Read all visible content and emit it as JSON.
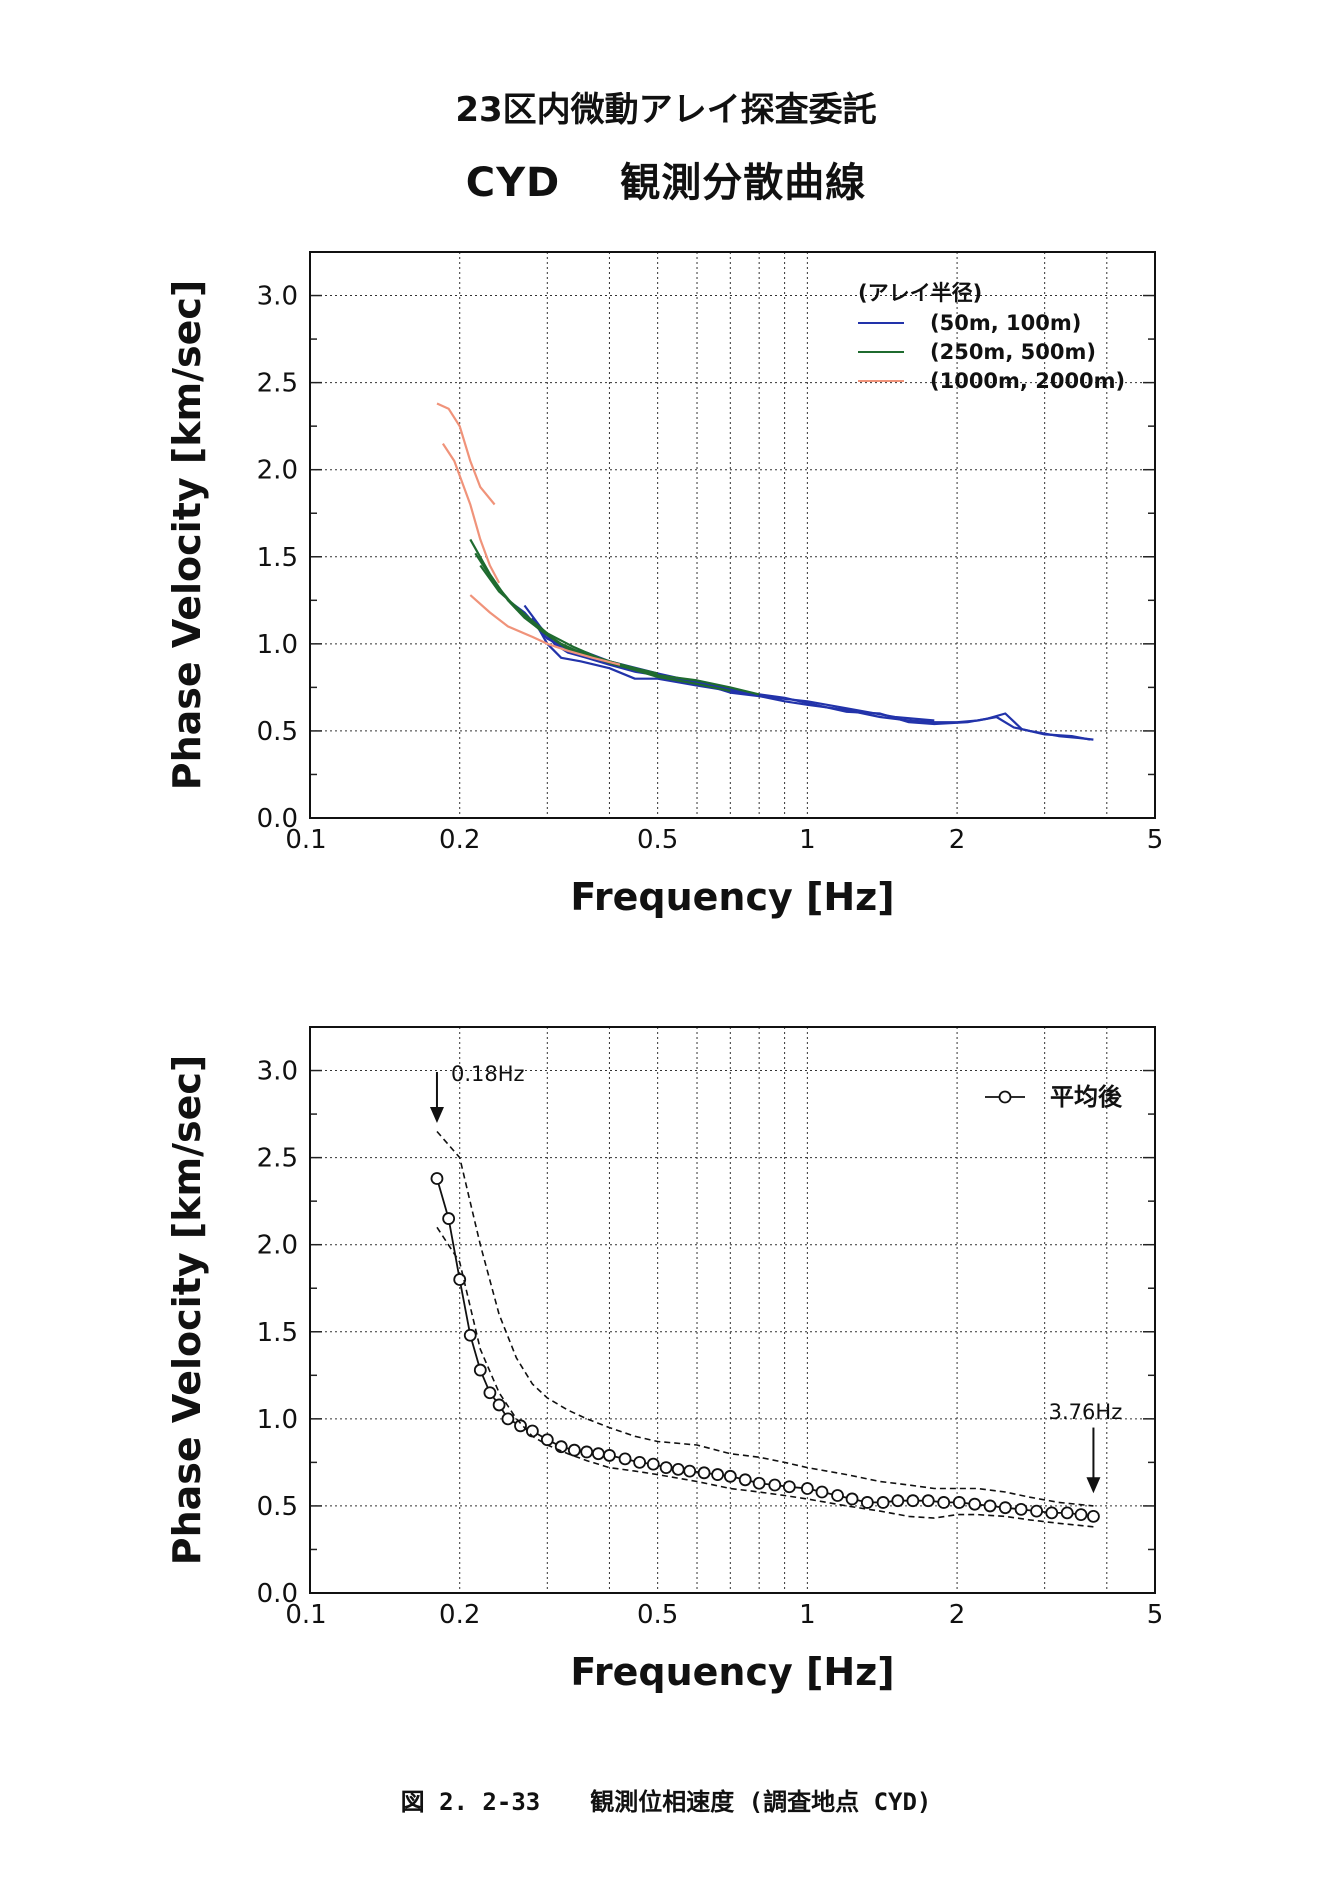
{
  "page": {
    "title_line1": "23区内微動アレイ探査委託",
    "title_code": "CYD",
    "title_line2": "観測分散曲線",
    "caption_fig": "図 2. 2-33",
    "caption_text": "観測位相速度 (調査地点 CYD)"
  },
  "chart_data": [
    {
      "type": "line",
      "xlabel": "Frequency [Hz]",
      "ylabel": "Phase Velocity [km/sec]",
      "xscale": "log",
      "xlim": [
        0.1,
        5
      ],
      "ylim": [
        0.0,
        3.25
      ],
      "xticks": [
        {
          "v": 0.1,
          "label": "0.1"
        },
        {
          "v": 0.2,
          "label": "0.2"
        },
        {
          "v": 0.5,
          "label": "0.5"
        },
        {
          "v": 1,
          "label": "1"
        },
        {
          "v": 2,
          "label": "2"
        },
        {
          "v": 5,
          "label": "5"
        }
      ],
      "yticks": [
        {
          "v": 0.0,
          "label": "0.0"
        },
        {
          "v": 0.5,
          "label": "0.5"
        },
        {
          "v": 1.0,
          "label": "1.0"
        },
        {
          "v": 1.5,
          "label": "1.5"
        },
        {
          "v": 2.0,
          "label": "2.0"
        },
        {
          "v": 2.5,
          "label": "2.5"
        },
        {
          "v": 3.0,
          "label": "3.0"
        }
      ],
      "grid": true,
      "legend_title": "(アレイ半径)",
      "legend_position": "top-right",
      "series": [
        {
          "name": "(50m, 100m)",
          "color": "#2233aa",
          "lines": [
            [
              [
                0.27,
                1.22
              ],
              [
                0.29,
                1.1
              ],
              [
                0.31,
                1.0
              ],
              [
                0.33,
                0.95
              ],
              [
                0.36,
                0.92
              ],
              [
                0.4,
                0.88
              ],
              [
                0.45,
                0.84
              ],
              [
                0.5,
                0.82
              ],
              [
                0.6,
                0.78
              ],
              [
                0.7,
                0.72
              ],
              [
                0.8,
                0.7
              ],
              [
                0.9,
                0.67
              ],
              [
                1.0,
                0.65
              ],
              [
                1.2,
                0.62
              ],
              [
                1.4,
                0.58
              ],
              [
                1.6,
                0.56
              ],
              [
                1.8,
                0.55
              ],
              [
                2.0,
                0.55
              ],
              [
                2.2,
                0.56
              ],
              [
                2.4,
                0.58
              ],
              [
                2.6,
                0.52
              ],
              [
                2.8,
                0.5
              ],
              [
                3.2,
                0.47
              ],
              [
                3.5,
                0.46
              ],
              [
                3.76,
                0.45
              ]
            ],
            [
              [
                0.28,
                1.15
              ],
              [
                0.3,
                1.0
              ],
              [
                0.32,
                0.92
              ],
              [
                0.35,
                0.9
              ],
              [
                0.4,
                0.86
              ],
              [
                0.45,
                0.8
              ],
              [
                0.5,
                0.8
              ],
              [
                0.6,
                0.76
              ],
              [
                0.7,
                0.73
              ],
              [
                0.8,
                0.71
              ],
              [
                0.9,
                0.69
              ],
              [
                1.0,
                0.66
              ],
              [
                1.2,
                0.61
              ],
              [
                1.4,
                0.6
              ],
              [
                1.6,
                0.55
              ],
              [
                1.8,
                0.54
              ],
              [
                2.1,
                0.55
              ],
              [
                2.3,
                0.57
              ],
              [
                2.5,
                0.6
              ],
              [
                2.7,
                0.51
              ],
              [
                3.0,
                0.48
              ],
              [
                3.4,
                0.47
              ],
              [
                3.7,
                0.45
              ]
            ],
            [
              [
                0.25,
                1.25
              ],
              [
                0.27,
                1.18
              ],
              [
                0.3,
                1.03
              ],
              [
                0.33,
                0.97
              ],
              [
                0.36,
                0.95
              ],
              [
                0.4,
                0.9
              ],
              [
                0.5,
                0.83
              ],
              [
                0.6,
                0.78
              ],
              [
                0.7,
                0.74
              ],
              [
                0.8,
                0.7
              ],
              [
                1.0,
                0.67
              ],
              [
                1.2,
                0.63
              ],
              [
                1.5,
                0.58
              ],
              [
                1.8,
                0.56
              ]
            ]
          ]
        },
        {
          "name": "(250m, 500m)",
          "color": "#1f6b2f",
          "lines": [
            [
              [
                0.21,
                1.6
              ],
              [
                0.23,
                1.4
              ],
              [
                0.25,
                1.25
              ],
              [
                0.27,
                1.15
              ],
              [
                0.3,
                1.05
              ],
              [
                0.33,
                0.97
              ],
              [
                0.36,
                0.94
              ],
              [
                0.4,
                0.9
              ],
              [
                0.45,
                0.86
              ],
              [
                0.5,
                0.82
              ],
              [
                0.6,
                0.79
              ],
              [
                0.7,
                0.75
              ],
              [
                0.8,
                0.71
              ]
            ],
            [
              [
                0.215,
                1.52
              ],
              [
                0.235,
                1.35
              ],
              [
                0.26,
                1.2
              ],
              [
                0.29,
                1.08
              ],
              [
                0.32,
                1.0
              ],
              [
                0.35,
                0.95
              ],
              [
                0.4,
                0.89
              ],
              [
                0.45,
                0.85
              ],
              [
                0.5,
                0.81
              ],
              [
                0.6,
                0.77
              ],
              [
                0.7,
                0.73
              ]
            ],
            [
              [
                0.22,
                1.45
              ],
              [
                0.24,
                1.3
              ],
              [
                0.27,
                1.17
              ],
              [
                0.3,
                1.06
              ],
              [
                0.34,
                0.98
              ],
              [
                0.38,
                0.92
              ],
              [
                0.42,
                0.88
              ],
              [
                0.5,
                0.83
              ]
            ]
          ]
        },
        {
          "name": "(1000m, 2000m)",
          "color": "#f0937a",
          "lines": [
            [
              [
                0.18,
                2.38
              ],
              [
                0.19,
                2.35
              ],
              [
                0.2,
                2.25
              ],
              [
                0.21,
                2.05
              ],
              [
                0.22,
                1.9
              ],
              [
                0.235,
                1.8
              ]
            ],
            [
              [
                0.185,
                2.15
              ],
              [
                0.195,
                2.05
              ],
              [
                0.21,
                1.8
              ],
              [
                0.22,
                1.6
              ],
              [
                0.23,
                1.45
              ],
              [
                0.24,
                1.35
              ]
            ],
            [
              [
                0.21,
                1.28
              ],
              [
                0.23,
                1.18
              ],
              [
                0.25,
                1.1
              ],
              [
                0.28,
                1.04
              ],
              [
                0.3,
                1.0
              ],
              [
                0.33,
                0.96
              ],
              [
                0.37,
                0.92
              ],
              [
                0.42,
                0.88
              ]
            ]
          ]
        }
      ]
    },
    {
      "type": "line",
      "xlabel": "Frequency [Hz]",
      "ylabel": "Phase Velocity [km/sec]",
      "xscale": "log",
      "xlim": [
        0.1,
        5
      ],
      "ylim": [
        0.0,
        3.25
      ],
      "xticks": [
        {
          "v": 0.1,
          "label": "0.1"
        },
        {
          "v": 0.2,
          "label": "0.2"
        },
        {
          "v": 0.5,
          "label": "0.5"
        },
        {
          "v": 1,
          "label": "1"
        },
        {
          "v": 2,
          "label": "2"
        },
        {
          "v": 5,
          "label": "5"
        }
      ],
      "yticks": [
        {
          "v": 0.0,
          "label": "0.0"
        },
        {
          "v": 0.5,
          "label": "0.5"
        },
        {
          "v": 1.0,
          "label": "1.0"
        },
        {
          "v": 1.5,
          "label": "1.5"
        },
        {
          "v": 2.0,
          "label": "2.0"
        },
        {
          "v": 2.5,
          "label": "2.5"
        },
        {
          "v": 3.0,
          "label": "3.0"
        }
      ],
      "grid": true,
      "legend_position": "top-right",
      "annotations": [
        {
          "label": "0.18Hz",
          "x": 0.18
        },
        {
          "label": "3.76Hz",
          "x": 3.76
        }
      ],
      "series": [
        {
          "name": "平均後",
          "marker": "open-circle",
          "color": "#111111",
          "x": [
            0.18,
            0.19,
            0.2,
            0.21,
            0.22,
            0.23,
            0.24,
            0.25,
            0.265,
            0.28,
            0.3,
            0.32,
            0.34,
            0.36,
            0.38,
            0.4,
            0.43,
            0.46,
            0.49,
            0.52,
            0.55,
            0.58,
            0.62,
            0.66,
            0.7,
            0.75,
            0.8,
            0.86,
            0.92,
            1.0,
            1.07,
            1.15,
            1.23,
            1.32,
            1.42,
            1.52,
            1.63,
            1.75,
            1.88,
            2.02,
            2.17,
            2.33,
            2.5,
            2.69,
            2.89,
            3.1,
            3.33,
            3.55,
            3.76
          ],
          "y": [
            2.38,
            2.15,
            1.8,
            1.48,
            1.28,
            1.15,
            1.08,
            1.0,
            0.96,
            0.93,
            0.88,
            0.84,
            0.82,
            0.81,
            0.8,
            0.79,
            0.77,
            0.75,
            0.74,
            0.72,
            0.71,
            0.7,
            0.69,
            0.68,
            0.67,
            0.65,
            0.63,
            0.62,
            0.61,
            0.6,
            0.58,
            0.56,
            0.54,
            0.52,
            0.52,
            0.53,
            0.53,
            0.53,
            0.52,
            0.52,
            0.51,
            0.5,
            0.49,
            0.48,
            0.47,
            0.46,
            0.46,
            0.45,
            0.44
          ]
        },
        {
          "style": "dashed",
          "color": "#111111",
          "x": [
            0.18,
            0.2,
            0.22,
            0.24,
            0.26,
            0.28,
            0.3,
            0.33,
            0.36,
            0.4,
            0.45,
            0.5,
            0.6,
            0.7,
            0.8,
            0.9,
            1.0,
            1.2,
            1.4,
            1.6,
            1.8,
            2.0,
            2.2,
            2.5,
            2.8,
            3.2,
            3.76
          ],
          "y": [
            2.65,
            2.5,
            2.0,
            1.6,
            1.35,
            1.2,
            1.12,
            1.05,
            1.0,
            0.95,
            0.9,
            0.87,
            0.85,
            0.8,
            0.78,
            0.75,
            0.72,
            0.68,
            0.64,
            0.62,
            0.6,
            0.6,
            0.6,
            0.58,
            0.55,
            0.52,
            0.5
          ]
        },
        {
          "style": "dashed",
          "color": "#111111",
          "x": [
            0.18,
            0.2,
            0.22,
            0.24,
            0.26,
            0.28,
            0.3,
            0.33,
            0.36,
            0.4,
            0.45,
            0.5,
            0.6,
            0.7,
            0.8,
            0.9,
            1.0,
            1.2,
            1.4,
            1.6,
            1.8,
            2.0,
            2.2,
            2.5,
            2.8,
            3.2,
            3.76
          ],
          "y": [
            2.1,
            1.9,
            1.4,
            1.15,
            1.0,
            0.9,
            0.85,
            0.8,
            0.76,
            0.72,
            0.7,
            0.68,
            0.64,
            0.6,
            0.58,
            0.56,
            0.54,
            0.5,
            0.47,
            0.44,
            0.43,
            0.45,
            0.45,
            0.44,
            0.42,
            0.4,
            0.38
          ]
        }
      ]
    }
  ]
}
